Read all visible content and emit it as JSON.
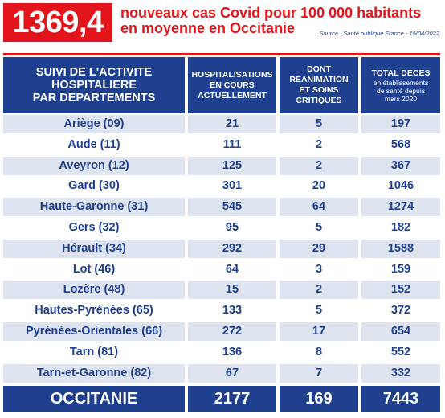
{
  "header": {
    "rate": "1369,4",
    "headline_line1": "nouveaux cas Covid pour 100 000 habitants",
    "headline_line2": "en moyenne en Occitanie",
    "source": "Source : Santé publique France - 15/04/2022"
  },
  "table": {
    "columns": {
      "departement": [
        "SUIVI DE L'ACTIVITE",
        "HOSPITALIERE",
        "PAR DEPARTEMENTS"
      ],
      "hospitalisations": [
        "HOSPITALISATIONS",
        "EN COURS",
        "ACTUELLEMENT"
      ],
      "reanimation": [
        "DONT",
        "REANIMATION",
        "ET SOINS",
        "CRITIQUES"
      ],
      "deces_title": "TOTAL DECES",
      "deces_sub": [
        "en établissements",
        "de santé depuis",
        "mars 2020"
      ]
    },
    "rows": [
      {
        "name": "Ariège (09)",
        "hosp": "21",
        "rea": "5",
        "deces": "197"
      },
      {
        "name": "Aude (11)",
        "hosp": "111",
        "rea": "2",
        "deces": "568"
      },
      {
        "name": "Aveyron (12)",
        "hosp": "125",
        "rea": "2",
        "deces": "367"
      },
      {
        "name": "Gard (30)",
        "hosp": "301",
        "rea": "20",
        "deces": "1046"
      },
      {
        "name": "Haute-Garonne (31)",
        "hosp": "545",
        "rea": "64",
        "deces": "1274"
      },
      {
        "name": "Gers (32)",
        "hosp": "95",
        "rea": "5",
        "deces": "182"
      },
      {
        "name": "Hérault (34)",
        "hosp": "292",
        "rea": "29",
        "deces": "1588"
      },
      {
        "name": "Lot (46)",
        "hosp": "64",
        "rea": "3",
        "deces": "159"
      },
      {
        "name": "Lozère (48)",
        "hosp": "15",
        "rea": "2",
        "deces": "152"
      },
      {
        "name": "Hautes-Pyrénées (65)",
        "hosp": "133",
        "rea": "5",
        "deces": "372"
      },
      {
        "name": "Pyrénées-Orientales (66)",
        "hosp": "272",
        "rea": "17",
        "deces": "654"
      },
      {
        "name": "Tarn (81)",
        "hosp": "136",
        "rea": "8",
        "deces": "552"
      },
      {
        "name": "Tarn-et-Garonne (82)",
        "hosp": "67",
        "rea": "7",
        "deces": "332"
      }
    ],
    "total": {
      "name": "OCCITANIE",
      "hosp": "2177",
      "rea": "169",
      "deces": "7443"
    }
  },
  "colors": {
    "accent_red": "#e4141b",
    "navy": "#1f3f8f",
    "row_shade": "#dde3ef",
    "row_plain": "#ffffff"
  }
}
